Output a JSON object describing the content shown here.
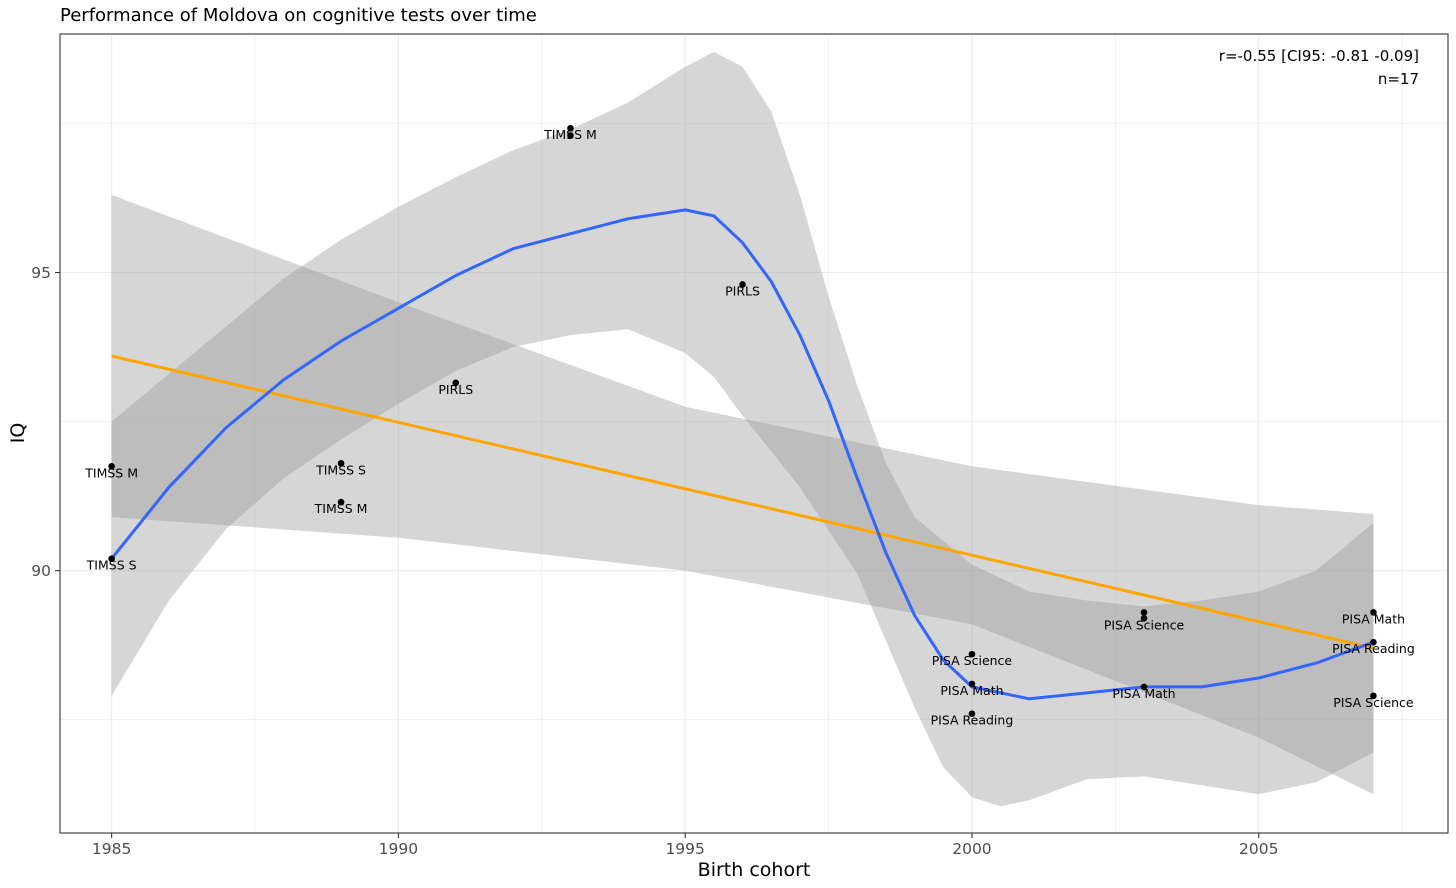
{
  "chart_data": {
    "type": "scatter",
    "title": "Performance of Moldova on cognitive tests over time",
    "xlabel": "Birth cohort",
    "ylabel": "IQ",
    "xlim": [
      1984.1,
      2008.3
    ],
    "ylim": [
      85.6,
      99.0
    ],
    "xticks": [
      1985,
      1990,
      1995,
      2000,
      2005
    ],
    "yticks": [
      90,
      95
    ],
    "grid": true,
    "annotation": [
      "r=-0.55 [CI95: -0.81 -0.09]",
      "n=17"
    ],
    "points": [
      {
        "x": 1985.0,
        "y": 91.75,
        "label": "TIMSS M"
      },
      {
        "x": 1985.0,
        "y": 90.2,
        "label": "TIMSS S"
      },
      {
        "x": 1989.0,
        "y": 91.8,
        "label": "TIMSS S"
      },
      {
        "x": 1989.0,
        "y": 91.15,
        "label": "TIMSS M"
      },
      {
        "x": 1991.0,
        "y": 93.15,
        "label": "PIRLS"
      },
      {
        "x": 1993.0,
        "y": 97.42,
        "label": "TIMSS M"
      },
      {
        "x": 1993.0,
        "y": 97.3,
        "label": null
      },
      {
        "x": 1996.0,
        "y": 94.8,
        "label": "PIRLS"
      },
      {
        "x": 2000.0,
        "y": 88.6,
        "label": "PISA Science"
      },
      {
        "x": 2000.0,
        "y": 88.1,
        "label": "PISA Math"
      },
      {
        "x": 2000.0,
        "y": 87.6,
        "label": "PISA Reading"
      },
      {
        "x": 2003.0,
        "y": 89.3,
        "label": null
      },
      {
        "x": 2003.0,
        "y": 89.2,
        "label": "PISA Science"
      },
      {
        "x": 2003.0,
        "y": 88.05,
        "label": "PISA Math"
      },
      {
        "x": 2007.0,
        "y": 89.3,
        "label": "PISA Math"
      },
      {
        "x": 2007.0,
        "y": 88.8,
        "label": "PISA Reading"
      },
      {
        "x": 2007.0,
        "y": 87.9,
        "label": "PISA Science"
      }
    ],
    "linear_fit": {
      "color": "#FFA500",
      "x": [
        1985.0,
        2007.0
      ],
      "y": [
        93.6,
        88.7
      ],
      "ci_lower": [
        [
          1985.0,
          90.9
        ],
        [
          1990.0,
          90.55
        ],
        [
          1995.0,
          90.0
        ],
        [
          2000.0,
          89.1
        ],
        [
          2005.0,
          87.2
        ],
        [
          2007.0,
          86.25
        ]
      ],
      "ci_upper": [
        [
          1985.0,
          96.3
        ],
        [
          1990.0,
          94.5
        ],
        [
          1995.0,
          92.75
        ],
        [
          2000.0,
          91.75
        ],
        [
          2005.0,
          91.1
        ],
        [
          2007.0,
          90.95
        ]
      ]
    },
    "smooth_fit": {
      "color": "#3366FF",
      "points": [
        [
          1985.0,
          90.2
        ],
        [
          1986.0,
          91.4
        ],
        [
          1987.0,
          92.4
        ],
        [
          1988.0,
          93.2
        ],
        [
          1989.0,
          93.85
        ],
        [
          1990.0,
          94.4
        ],
        [
          1991.0,
          94.95
        ],
        [
          1992.0,
          95.4
        ],
        [
          1993.0,
          95.65
        ],
        [
          1994.0,
          95.9
        ],
        [
          1995.0,
          96.05
        ],
        [
          1995.5,
          95.95
        ],
        [
          1996.0,
          95.5
        ],
        [
          1996.5,
          94.85
        ],
        [
          1997.0,
          93.95
        ],
        [
          1997.5,
          92.85
        ],
        [
          1998.0,
          91.55
        ],
        [
          1998.5,
          90.3
        ],
        [
          1999.0,
          89.25
        ],
        [
          1999.5,
          88.5
        ],
        [
          2000.0,
          88.05
        ],
        [
          2001.0,
          87.85
        ],
        [
          2002.0,
          87.95
        ],
        [
          2003.0,
          88.05
        ],
        [
          2004.0,
          88.05
        ],
        [
          2005.0,
          88.2
        ],
        [
          2006.0,
          88.45
        ],
        [
          2007.0,
          88.8
        ]
      ],
      "ci_upper": [
        [
          1985.0,
          92.5
        ],
        [
          1986.0,
          93.3
        ],
        [
          1987.0,
          94.1
        ],
        [
          1988.0,
          94.9
        ],
        [
          1989.0,
          95.55
        ],
        [
          1990.0,
          96.1
        ],
        [
          1991.0,
          96.6
        ],
        [
          1992.0,
          97.05
        ],
        [
          1993.0,
          97.4
        ],
        [
          1994.0,
          97.85
        ],
        [
          1995.0,
          98.45
        ],
        [
          1995.5,
          98.7
        ],
        [
          1996.0,
          98.45
        ],
        [
          1996.5,
          97.7
        ],
        [
          1997.0,
          96.3
        ],
        [
          1997.5,
          94.6
        ],
        [
          1998.0,
          93.1
        ],
        [
          1998.5,
          91.8
        ],
        [
          1999.0,
          90.9
        ],
        [
          2000.0,
          90.1
        ],
        [
          2001.0,
          89.65
        ],
        [
          2002.0,
          89.5
        ],
        [
          2003.0,
          89.4
        ],
        [
          2004.0,
          89.5
        ],
        [
          2005.0,
          89.65
        ],
        [
          2006.0,
          90.0
        ],
        [
          2007.0,
          90.8
        ]
      ],
      "ci_lower": [
        [
          1985.0,
          87.9
        ],
        [
          1986.0,
          89.5
        ],
        [
          1987.0,
          90.7
        ],
        [
          1988.0,
          91.55
        ],
        [
          1989.0,
          92.2
        ],
        [
          1990.0,
          92.8
        ],
        [
          1991.0,
          93.35
        ],
        [
          1992.0,
          93.75
        ],
        [
          1993.0,
          93.95
        ],
        [
          1994.0,
          94.05
        ],
        [
          1995.0,
          93.65
        ],
        [
          1995.5,
          93.25
        ],
        [
          1996.0,
          92.6
        ],
        [
          1997.0,
          91.4
        ],
        [
          1998.0,
          89.95
        ],
        [
          1999.0,
          87.7
        ],
        [
          1999.5,
          86.7
        ],
        [
          2000.0,
          86.2
        ],
        [
          2000.5,
          86.05
        ],
        [
          2001.0,
          86.15
        ],
        [
          2002.0,
          86.5
        ],
        [
          2003.0,
          86.55
        ],
        [
          2004.0,
          86.4
        ],
        [
          2005.0,
          86.25
        ],
        [
          2006.0,
          86.45
        ],
        [
          2007.0,
          86.95
        ]
      ]
    }
  }
}
